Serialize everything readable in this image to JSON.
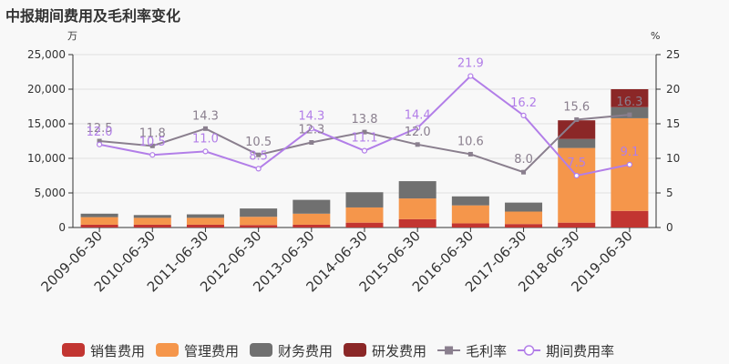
{
  "chart_data": {
    "type": "bar",
    "title": "中报期间费用及毛利率变化",
    "left_unit": "万",
    "right_unit": "%",
    "ylim_left": [
      0,
      25000
    ],
    "ylim_right": [
      0,
      25
    ],
    "left_ticks": [
      "0",
      "5,000",
      "10,000",
      "15,000",
      "20,000",
      "25,000"
    ],
    "right_ticks": [
      "0",
      "5",
      "10",
      "15",
      "20",
      "25"
    ],
    "categories": [
      "2009-06-30",
      "2010-06-30",
      "2011-06-30",
      "2012-06-30",
      "2013-06-30",
      "2014-06-30",
      "2015-06-30",
      "2016-06-30",
      "2017-06-30",
      "2018-06-30",
      "2019-06-30"
    ],
    "series": [
      {
        "name": "销售费用",
        "kind": "bar",
        "color": "#c23531",
        "values": [
          400,
          400,
          400,
          350,
          400,
          700,
          1200,
          600,
          500,
          700,
          2400
        ]
      },
      {
        "name": "管理费用",
        "kind": "bar",
        "color": "#f5964b",
        "values": [
          1100,
          1000,
          1000,
          1200,
          1600,
          2200,
          3000,
          2600,
          1800,
          10800,
          13400
        ]
      },
      {
        "name": "财务费用",
        "kind": "bar",
        "color": "#707070",
        "values": [
          500,
          400,
          500,
          1200,
          2000,
          2200,
          2500,
          1300,
          1300,
          1300,
          1600
        ]
      },
      {
        "name": "研发费用",
        "kind": "bar",
        "color": "#8b2727",
        "values": [
          0,
          0,
          0,
          0,
          0,
          0,
          0,
          0,
          0,
          2700,
          2600
        ]
      },
      {
        "name": "毛利率",
        "kind": "line",
        "color": "#8a7f8e",
        "values": [
          12.5,
          11.8,
          14.3,
          10.5,
          12.3,
          13.8,
          12.0,
          10.6,
          8.0,
          15.6,
          16.3
        ],
        "labels": [
          "12.5",
          "11.8",
          "14.3",
          "10.5",
          "12.3",
          "13.8",
          "12.0",
          "10.6",
          "8.0",
          "15.6",
          "16.3"
        ]
      },
      {
        "name": "期间费用率",
        "kind": "line",
        "color": "#b27ee8",
        "values": [
          12.0,
          10.5,
          11.0,
          8.5,
          14.3,
          11.1,
          14.4,
          21.9,
          16.2,
          7.5,
          9.1
        ],
        "labels": [
          "12.0",
          "10.5",
          "11.0",
          "8.5",
          "14.3",
          "11.1",
          "14.4",
          "21.9",
          "16.2",
          "7.5",
          "9.1"
        ]
      }
    ]
  }
}
